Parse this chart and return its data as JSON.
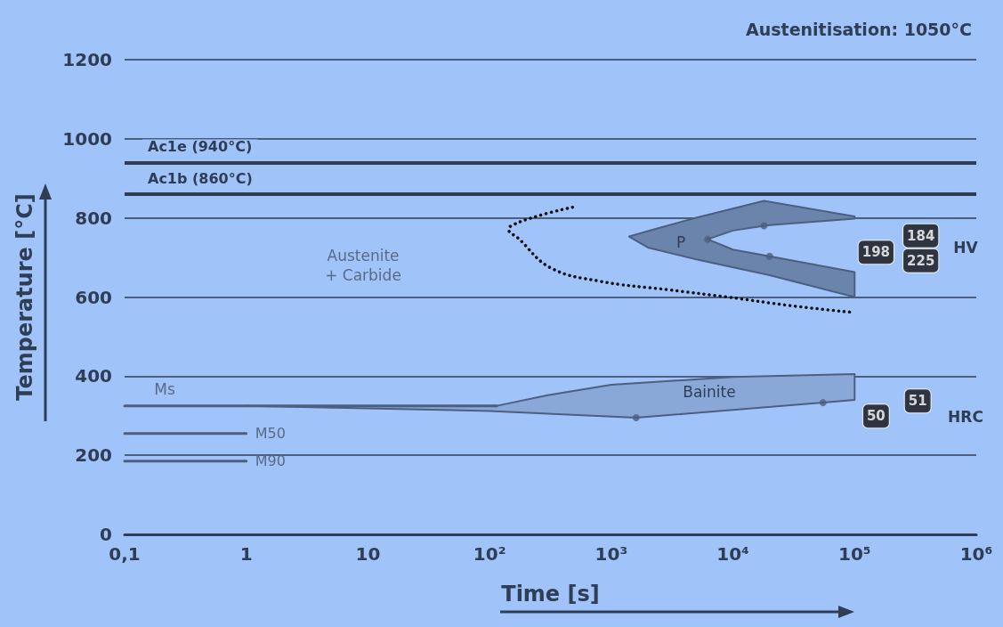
{
  "chart_data": {
    "type": "line",
    "title": "Austenitisation: 1050°C",
    "xlabel": "Time [s]",
    "ylabel": "Temperature [°C]",
    "log": "x",
    "xlim": [
      0.1,
      1000000
    ],
    "xticks": [
      {
        "value": 0.1,
        "label": "0,1"
      },
      1,
      10,
      {
        "value": 100,
        "label": "10²"
      },
      {
        "value": 1000,
        "label": "10³"
      },
      {
        "value": 10000,
        "label": "10⁴"
      },
      {
        "value": 100000,
        "label": "10⁵"
      },
      {
        "value": 1000000,
        "label": "10⁶"
      }
    ],
    "ylim": [
      0,
      1200
    ],
    "yticks": [
      0,
      200,
      400,
      600,
      800,
      1000,
      1200
    ],
    "grid": "y",
    "legend": false,
    "series": [
      {
        "type": "area",
        "color": "#6b84ac",
        "x": [
          18000,
          4900,
          2500,
          1400,
          2000,
          5000,
          20000,
          100000,
          100000,
          20000,
          10000,
          6200,
          10000,
          20000,
          100000,
          100000,
          18000
        ],
        "values": [
          843,
          800,
          775,
          753,
          725,
          695,
          655,
          600,
          663,
          703,
          720,
          746,
          768,
          782,
          798,
          804,
          843
        ]
      },
      {
        "type": "area",
        "color": "#89a8d8",
        "x": [
          1,
          115,
          300,
          1000,
          10000,
          100000,
          100000,
          55000,
          1600,
          100,
          1
        ],
        "values": [
          325,
          325,
          352,
          378,
          398,
          405,
          340,
          333,
          295,
          312,
          325
        ]
      },
      {
        "type": "line",
        "line_style": "dotted",
        "color": "#111111",
        "x": [
          480,
          250,
          150,
          144,
          170,
          316,
          800,
          3000,
          9000,
          30000,
          91000
        ],
        "values": [
          827,
          805,
          780,
          769,
          750,
          674,
          640,
          618,
          600,
          578,
          562
        ]
      },
      {
        "type": "line",
        "color": "#4d5f80",
        "x": [
          0.1,
          115
        ],
        "values": [
          325,
          325
        ]
      },
      {
        "name": "M50",
        "type": "line",
        "color": "#4d5f80",
        "x": [
          0.1,
          1
        ],
        "values": [
          255,
          255
        ]
      },
      {
        "name": "M90",
        "type": "line",
        "color": "#4d5f80",
        "x": [
          0.1,
          1
        ],
        "values": [
          185,
          185
        ]
      },
      {
        "type": "scatter",
        "marker": "circle",
        "color": "#4d5f80",
        "x": [
          18000,
          20000,
          6200,
          1600,
          55000
        ],
        "values": [
          780,
          703,
          746,
          295,
          333
        ]
      }
    ],
    "ref_lines": [
      {
        "axis": "y",
        "value": 940,
        "label": "Ac1e (940°C)",
        "color": "#2f3d55"
      },
      {
        "axis": "y",
        "value": 860,
        "label": "Ac1b (860°C)",
        "color": "#2f3d55"
      }
    ],
    "annotations": [
      "Austenite\n+ Carbide",
      "P",
      "Bainite",
      "Ms",
      "HV",
      "HRC",
      {
        "text": "198",
        "x": 150000,
        "y": 713
      },
      {
        "text": "184",
        "x": 350000,
        "y": 755
      },
      {
        "text": "225",
        "x": 350000,
        "y": 692
      },
      {
        "text": "51",
        "x": 330000,
        "y": 337
      },
      {
        "text": "50",
        "x": 150000,
        "y": 299
      }
    ]
  }
}
